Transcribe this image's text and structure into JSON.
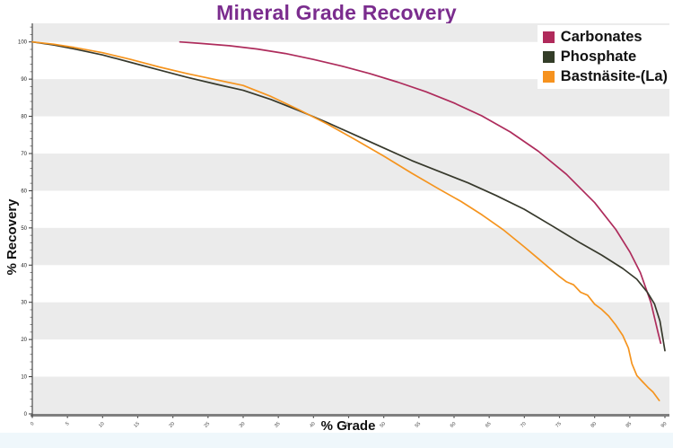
{
  "title": {
    "text": "Mineral Grade Recovery",
    "color": "#7b2d8e"
  },
  "legend": {
    "items": [
      {
        "label": "Carbonates",
        "color": "#b02a5b"
      },
      {
        "label": "Phosphate",
        "color": "#333d28"
      },
      {
        "label": "Bastnäsite-(La)",
        "color": "#f6921e"
      }
    ]
  },
  "axes": {
    "x_title": "% Grade",
    "y_title": "% Recovery"
  },
  "chart_data": {
    "type": "line",
    "title": "Mineral Grade Recovery",
    "xlabel": "% Grade",
    "ylabel": "% Recovery",
    "xlim": [
      0,
      90
    ],
    "ylim": [
      0,
      105
    ],
    "x_ticks": [
      0,
      5,
      10,
      15,
      20,
      25,
      30,
      35,
      40,
      45,
      50,
      55,
      60,
      65,
      70,
      75,
      80,
      85,
      90
    ],
    "y_ticks": [
      0,
      10,
      20,
      30,
      40,
      50,
      60,
      70,
      80,
      90,
      100
    ],
    "y_minor_step": 2,
    "grid": "alternating-horizontal-bands",
    "band_color": "#ebebeb",
    "plot_bg": "#ffffff",
    "axis_color": "#7f7f7f",
    "tick_label_color": "#444444",
    "legend_position": "top-right",
    "series": [
      {
        "name": "Carbonates",
        "color": "#ae2c5c",
        "points": [
          [
            21,
            100
          ],
          [
            24,
            99.6
          ],
          [
            28,
            99
          ],
          [
            32,
            98.1
          ],
          [
            36,
            96.9
          ],
          [
            40,
            95.3
          ],
          [
            44,
            93.5
          ],
          [
            48,
            91.5
          ],
          [
            52,
            89.2
          ],
          [
            56,
            86.6
          ],
          [
            60,
            83.6
          ],
          [
            64,
            80.1
          ],
          [
            68,
            75.8
          ],
          [
            72,
            70.6
          ],
          [
            76,
            64.4
          ],
          [
            80,
            56.8
          ],
          [
            83,
            49.6
          ],
          [
            85,
            43.6
          ],
          [
            86.5,
            38
          ],
          [
            88,
            30
          ],
          [
            89,
            22
          ],
          [
            89.4,
            19
          ]
        ]
      },
      {
        "name": "Phosphate",
        "color": "#37392c",
        "points": [
          [
            0,
            100
          ],
          [
            3,
            99.2
          ],
          [
            6,
            98.1
          ],
          [
            10,
            96.5
          ],
          [
            14,
            94.5
          ],
          [
            18,
            92.5
          ],
          [
            22,
            90.5
          ],
          [
            26,
            88.7
          ],
          [
            30,
            87
          ],
          [
            34,
            84.5
          ],
          [
            38,
            81.5
          ],
          [
            42,
            78.3
          ],
          [
            46,
            74.9
          ],
          [
            50,
            71.5
          ],
          [
            54,
            68.1
          ],
          [
            58,
            65.1
          ],
          [
            62,
            62.1
          ],
          [
            66,
            58.7
          ],
          [
            70,
            55
          ],
          [
            74,
            50.5
          ],
          [
            78,
            45.9
          ],
          [
            81,
            42.7
          ],
          [
            84,
            39.1
          ],
          [
            86,
            36.2
          ],
          [
            87.5,
            32.7
          ],
          [
            88.5,
            29.6
          ],
          [
            89.3,
            24.9
          ],
          [
            90,
            17
          ]
        ]
      },
      {
        "name": "Bastnäsite-(La)",
        "color": "#f5941e",
        "points": [
          [
            0,
            100
          ],
          [
            3,
            99.4
          ],
          [
            6,
            98.5
          ],
          [
            10,
            97.1
          ],
          [
            14,
            95.3
          ],
          [
            18,
            93.3
          ],
          [
            22,
            91.5
          ],
          [
            26,
            89.9
          ],
          [
            30,
            88.3
          ],
          [
            34,
            85.3
          ],
          [
            38,
            81.7
          ],
          [
            42,
            77.9
          ],
          [
            46,
            73.7
          ],
          [
            50,
            69.3
          ],
          [
            54,
            64.7
          ],
          [
            58,
            60.3
          ],
          [
            61,
            57.1
          ],
          [
            64,
            53.5
          ],
          [
            67,
            49.5
          ],
          [
            70,
            44.9
          ],
          [
            72,
            41.7
          ],
          [
            74,
            38.5
          ],
          [
            75,
            36.9
          ],
          [
            76,
            35.5
          ],
          [
            77,
            34.7
          ],
          [
            78,
            32.7
          ],
          [
            79,
            31.9
          ],
          [
            80,
            29.5
          ],
          [
            81,
            28.1
          ],
          [
            82,
            26.3
          ],
          [
            83,
            23.9
          ],
          [
            84,
            21.1
          ],
          [
            84.8,
            17.7
          ],
          [
            85.3,
            13.5
          ],
          [
            86,
            10.3
          ],
          [
            86.8,
            8.7
          ],
          [
            87.6,
            7.1
          ],
          [
            88.3,
            5.9
          ],
          [
            89.2,
            3.6
          ]
        ]
      }
    ]
  }
}
